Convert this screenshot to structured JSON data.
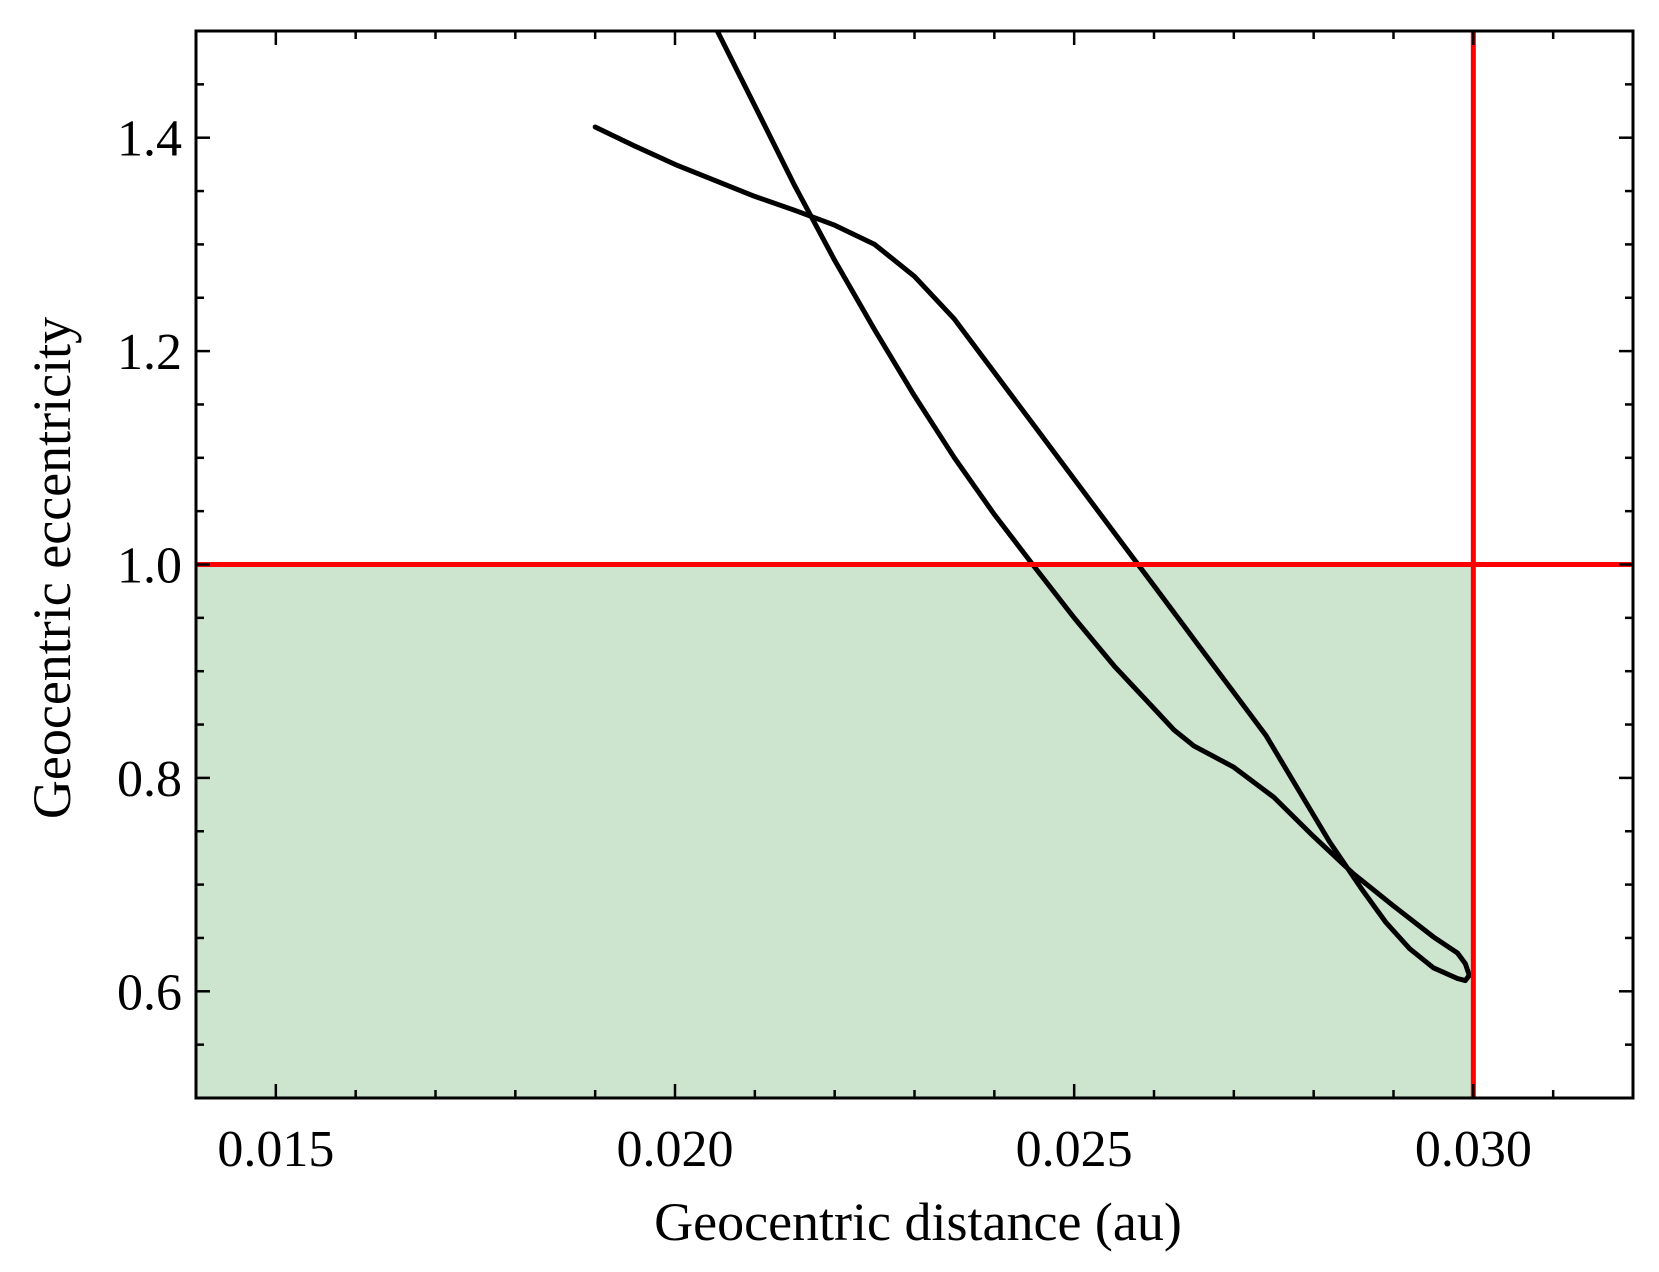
{
  "chart_data": {
    "type": "line",
    "title": "",
    "xlabel": "Geocentric distance (au)",
    "ylabel": "Geocentric eccentricity",
    "xlim": [
      0.014,
      0.032
    ],
    "ylim": [
      0.5,
      1.5
    ],
    "x_ticks": [
      0.015,
      0.02,
      0.025,
      0.03
    ],
    "x_tick_labels": [
      "0.015",
      "0.020",
      "0.025",
      "0.030"
    ],
    "y_ticks": [
      0.6,
      0.8,
      1.0,
      1.2,
      1.4
    ],
    "y_tick_labels": [
      "0.6",
      "0.8",
      "1.0",
      "1.2",
      "1.4"
    ],
    "x_minor_step": 0.001,
    "y_minor_step": 0.05,
    "grid": false,
    "bound_region": {
      "x": [
        0.014,
        0.03
      ],
      "y": [
        0.5,
        1.0
      ],
      "color": "#cde5cf"
    },
    "threshold_lines": [
      {
        "orientation": "horizontal",
        "value": 1.0,
        "color": "#ff0000"
      },
      {
        "orientation": "vertical",
        "value": 0.03,
        "color": "#ff0000"
      }
    ],
    "series": [
      {
        "color": "#000000",
        "points": [
          [
            0.02053,
            1.5
          ],
          [
            0.021,
            1.43
          ],
          [
            0.0215,
            1.355
          ],
          [
            0.022,
            1.285
          ],
          [
            0.0225,
            1.22
          ],
          [
            0.023,
            1.158
          ],
          [
            0.0235,
            1.1
          ],
          [
            0.024,
            1.047
          ],
          [
            0.0245,
            0.998
          ],
          [
            0.025,
            0.95
          ],
          [
            0.0255,
            0.905
          ],
          [
            0.026,
            0.865
          ],
          [
            0.02625,
            0.845
          ],
          [
            0.0265,
            0.83
          ],
          [
            0.0268,
            0.818
          ],
          [
            0.027,
            0.81
          ],
          [
            0.0275,
            0.782
          ],
          [
            0.028,
            0.745
          ],
          [
            0.0285,
            0.71
          ],
          [
            0.029,
            0.68
          ],
          [
            0.0295,
            0.651
          ],
          [
            0.0298,
            0.636
          ],
          [
            0.0299,
            0.626
          ],
          [
            0.02995,
            0.615
          ],
          [
            0.0299,
            0.61
          ],
          [
            0.0298,
            0.612
          ],
          [
            0.0295,
            0.622
          ],
          [
            0.0292,
            0.64
          ],
          [
            0.0289,
            0.665
          ],
          [
            0.0286,
            0.696
          ],
          [
            0.0282,
            0.74
          ],
          [
            0.0278,
            0.79
          ],
          [
            0.0274,
            0.84
          ],
          [
            0.027,
            0.88
          ],
          [
            0.0265,
            0.93
          ],
          [
            0.026,
            0.98
          ],
          [
            0.0255,
            1.03
          ],
          [
            0.025,
            1.08
          ],
          [
            0.0245,
            1.13
          ],
          [
            0.024,
            1.18
          ],
          [
            0.0235,
            1.23
          ],
          [
            0.023,
            1.27
          ],
          [
            0.0225,
            1.3
          ],
          [
            0.022,
            1.318
          ],
          [
            0.0215,
            1.332
          ],
          [
            0.021,
            1.345
          ],
          [
            0.0205,
            1.36
          ],
          [
            0.02,
            1.375
          ],
          [
            0.0195,
            1.392
          ],
          [
            0.019,
            1.41
          ]
        ]
      }
    ]
  }
}
